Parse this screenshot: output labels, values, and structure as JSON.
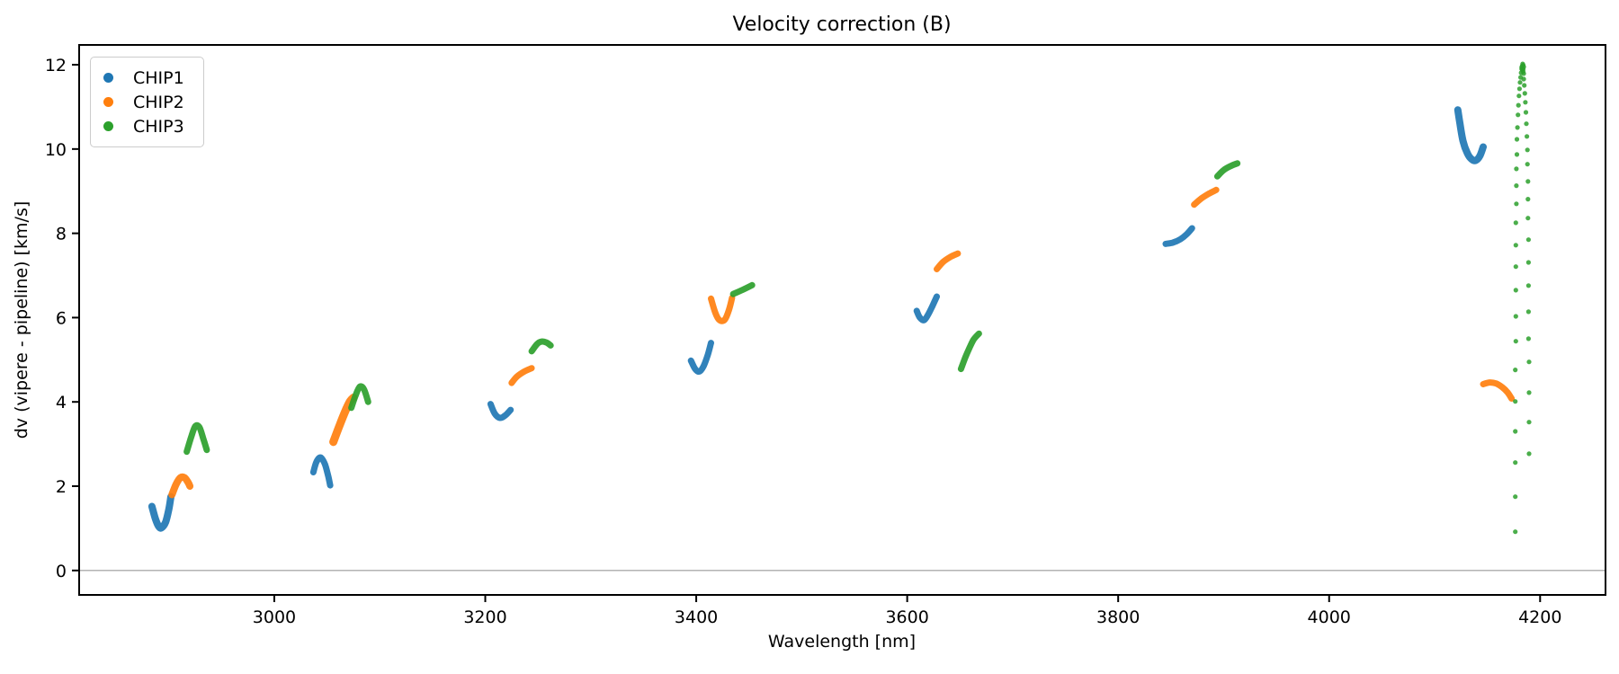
{
  "title": "Velocity correction (B)",
  "colors": {
    "chip1": "#1f77b4",
    "chip2": "#ff7f0e",
    "chip3": "#2ca02c",
    "zero_line": "#9a9a9a",
    "spine": "#000000",
    "background": "#ffffff",
    "legend_border": "#cccccc"
  },
  "legend": {
    "position": "upper left",
    "entries": [
      {
        "label": "CHIP1",
        "color": "#1f77b4"
      },
      {
        "label": "CHIP2",
        "color": "#ff7f0e"
      },
      {
        "label": "CHIP3",
        "color": "#2ca02c"
      }
    ]
  },
  "chart_data": {
    "type": "scatter",
    "title": "Velocity correction (B)",
    "xlabel": "Wavelength [nm]",
    "ylabel": "dv (vipere - pipeline) [km/s]",
    "xlim": [
      2815,
      4262
    ],
    "ylim": [
      -0.58,
      12.47
    ],
    "xticks": [
      3000,
      3200,
      3400,
      3600,
      3800,
      4000,
      4200
    ],
    "yticks": [
      0,
      2,
      4,
      6,
      8,
      10,
      12
    ],
    "grid": false,
    "legend_position": "upper left",
    "zero_line_y": 0,
    "marker_style": {
      "segment_stroke_px": 7,
      "dot_radius_px": 2.6,
      "opacity": 0.92
    },
    "series": [
      {
        "name": "CHIP1",
        "color": "#1f77b4",
        "segments": [
          {
            "w": 8,
            "pts": [
              [
                2884,
                1.52
              ],
              [
                2887,
                1.25
              ],
              [
                2890,
                1.06
              ],
              [
                2893,
                1.01
              ],
              [
                2897,
                1.15
              ],
              [
                2900,
                1.45
              ],
              [
                2902,
                1.75
              ]
            ]
          },
          {
            "w": 7,
            "pts": [
              [
                3037,
                2.33
              ],
              [
                3040,
                2.58
              ],
              [
                3044,
                2.68
              ],
              [
                3048,
                2.52
              ],
              [
                3051,
                2.25
              ],
              [
                3053,
                2.02
              ]
            ]
          },
          {
            "w": 7,
            "pts": [
              [
                3205,
                3.95
              ],
              [
                3209,
                3.72
              ],
              [
                3214,
                3.62
              ],
              [
                3219,
                3.68
              ],
              [
                3224,
                3.81
              ]
            ]
          },
          {
            "w": 7,
            "pts": [
              [
                3395,
                4.98
              ],
              [
                3399,
                4.78
              ],
              [
                3403,
                4.72
              ],
              [
                3407,
                4.85
              ],
              [
                3411,
                5.12
              ],
              [
                3414,
                5.4
              ]
            ]
          },
          {
            "w": 7,
            "pts": [
              [
                3609,
                6.16
              ],
              [
                3612,
                6.0
              ],
              [
                3616,
                5.94
              ],
              [
                3620,
                6.08
              ],
              [
                3624,
                6.28
              ],
              [
                3628,
                6.5
              ]
            ]
          },
          {
            "w": 7,
            "pts": [
              [
                3845,
                7.75
              ],
              [
                3852,
                7.78
              ],
              [
                3859,
                7.86
              ],
              [
                3865,
                7.98
              ],
              [
                3870,
                8.12
              ]
            ]
          },
          {
            "w": 8,
            "pts": [
              [
                4122,
                10.93
              ],
              [
                4124,
                10.6
              ],
              [
                4127,
                10.18
              ],
              [
                4131,
                9.9
              ],
              [
                4135,
                9.76
              ],
              [
                4139,
                9.73
              ],
              [
                4143,
                9.84
              ],
              [
                4146,
                10.05
              ]
            ]
          }
        ]
      },
      {
        "name": "CHIP2",
        "color": "#ff7f0e",
        "segments": [
          {
            "w": 8,
            "pts": [
              [
                2903,
                1.8
              ],
              [
                2907,
                2.05
              ],
              [
                2911,
                2.2
              ],
              [
                2915,
                2.2
              ],
              [
                2918,
                2.1
              ],
              [
                2920,
                2.0
              ]
            ]
          },
          {
            "w": 9,
            "pts": [
              [
                3056,
                3.05
              ],
              [
                3062,
                3.45
              ],
              [
                3068,
                3.82
              ],
              [
                3072,
                4.02
              ],
              [
                3075,
                4.1
              ]
            ]
          },
          {
            "w": 7,
            "pts": [
              [
                3225,
                4.45
              ],
              [
                3230,
                4.6
              ],
              [
                3237,
                4.72
              ],
              [
                3244,
                4.8
              ]
            ]
          },
          {
            "w": 7,
            "pts": [
              [
                3414,
                6.45
              ],
              [
                3418,
                6.12
              ],
              [
                3422,
                5.94
              ],
              [
                3427,
                5.95
              ],
              [
                3431,
                6.18
              ],
              [
                3434,
                6.47
              ]
            ]
          },
          {
            "w": 7,
            "pts": [
              [
                3628,
                7.15
              ],
              [
                3634,
                7.32
              ],
              [
                3641,
                7.44
              ],
              [
                3648,
                7.52
              ]
            ]
          },
          {
            "w": 7,
            "pts": [
              [
                3872,
                8.68
              ],
              [
                3879,
                8.83
              ],
              [
                3886,
                8.94
              ],
              [
                3893,
                9.03
              ]
            ]
          },
          {
            "w": 7,
            "pts": [
              [
                4146,
                4.42
              ],
              [
                4152,
                4.46
              ],
              [
                4158,
                4.44
              ],
              [
                4164,
                4.35
              ],
              [
                4169,
                4.23
              ],
              [
                4173,
                4.08
              ]
            ]
          }
        ]
      },
      {
        "name": "CHIP3",
        "color": "#2ca02c",
        "segments": [
          {
            "w": 7,
            "pts": [
              [
                2917,
                2.82
              ],
              [
                2921,
                3.15
              ],
              [
                2925,
                3.42
              ],
              [
                2929,
                3.4
              ],
              [
                2933,
                3.1
              ],
              [
                2936,
                2.86
              ]
            ]
          },
          {
            "w": 7,
            "pts": [
              [
                3073,
                3.86
              ],
              [
                3077,
                4.15
              ],
              [
                3081,
                4.36
              ],
              [
                3085,
                4.3
              ],
              [
                3089,
                4.0
              ]
            ]
          },
          {
            "w": 7,
            "pts": [
              [
                3244,
                5.2
              ],
              [
                3249,
                5.37
              ],
              [
                3253,
                5.43
              ],
              [
                3258,
                5.41
              ],
              [
                3262,
                5.34
              ]
            ]
          },
          {
            "w": 7,
            "pts": [
              [
                3435,
                6.56
              ],
              [
                3444,
                6.66
              ],
              [
                3453,
                6.77
              ]
            ]
          },
          {
            "w": 7,
            "pts": [
              [
                3651,
                4.78
              ],
              [
                3655,
                5.05
              ],
              [
                3659,
                5.28
              ],
              [
                3663,
                5.48
              ],
              [
                3668,
                5.62
              ]
            ]
          },
          {
            "w": 7,
            "pts": [
              [
                3894,
                9.35
              ],
              [
                3900,
                9.5
              ],
              [
                3907,
                9.6
              ],
              [
                3913,
                9.66
              ]
            ]
          }
        ],
        "points": [
          [
            4176.5,
            0.92
          ],
          [
            4176.5,
            1.75
          ],
          [
            4176.5,
            2.56
          ],
          [
            4176.5,
            3.3
          ],
          [
            4176.5,
            4.01
          ],
          [
            4176.5,
            4.76
          ],
          [
            4177,
            5.44
          ],
          [
            4177,
            6.03
          ],
          [
            4177,
            6.65
          ],
          [
            4177,
            7.21
          ],
          [
            4177,
            7.72
          ],
          [
            4177,
            8.25
          ],
          [
            4177.5,
            8.7
          ],
          [
            4177.5,
            9.13
          ],
          [
            4177.5,
            9.53
          ],
          [
            4178,
            9.87
          ],
          [
            4178,
            10.23
          ],
          [
            4178.5,
            10.51
          ],
          [
            4179,
            10.81
          ],
          [
            4179.5,
            11.04
          ],
          [
            4180,
            11.26
          ],
          [
            4180.5,
            11.43
          ],
          [
            4181,
            11.58
          ],
          [
            4181.5,
            11.7
          ],
          [
            4182,
            11.81
          ],
          [
            4182.5,
            11.9
          ],
          [
            4183,
            11.97
          ],
          [
            4189.5,
            2.77
          ],
          [
            4189.5,
            3.52
          ],
          [
            4189.5,
            4.22
          ],
          [
            4189.5,
            4.95
          ],
          [
            4189,
            5.5
          ],
          [
            4189,
            6.14
          ],
          [
            4189,
            6.76
          ],
          [
            4189,
            7.31
          ],
          [
            4189,
            7.85
          ],
          [
            4188.5,
            8.36
          ],
          [
            4188.5,
            8.81
          ],
          [
            4188.5,
            9.23
          ],
          [
            4188,
            9.64
          ],
          [
            4188,
            9.98
          ],
          [
            4187.5,
            10.3
          ],
          [
            4187,
            10.6
          ],
          [
            4186.5,
            10.87
          ],
          [
            4186,
            11.11
          ],
          [
            4185.5,
            11.32
          ],
          [
            4185,
            11.51
          ],
          [
            4184.5,
            11.66
          ],
          [
            4184.5,
            11.79
          ],
          [
            4184,
            11.9
          ],
          [
            4184,
            11.99
          ],
          [
            4183.5,
            12.02
          ],
          [
            4182.5,
            11.94
          ],
          [
            4184.5,
            11.95
          ],
          [
            4183,
            11.88
          ],
          [
            4184,
            11.84
          ]
        ]
      }
    ]
  }
}
